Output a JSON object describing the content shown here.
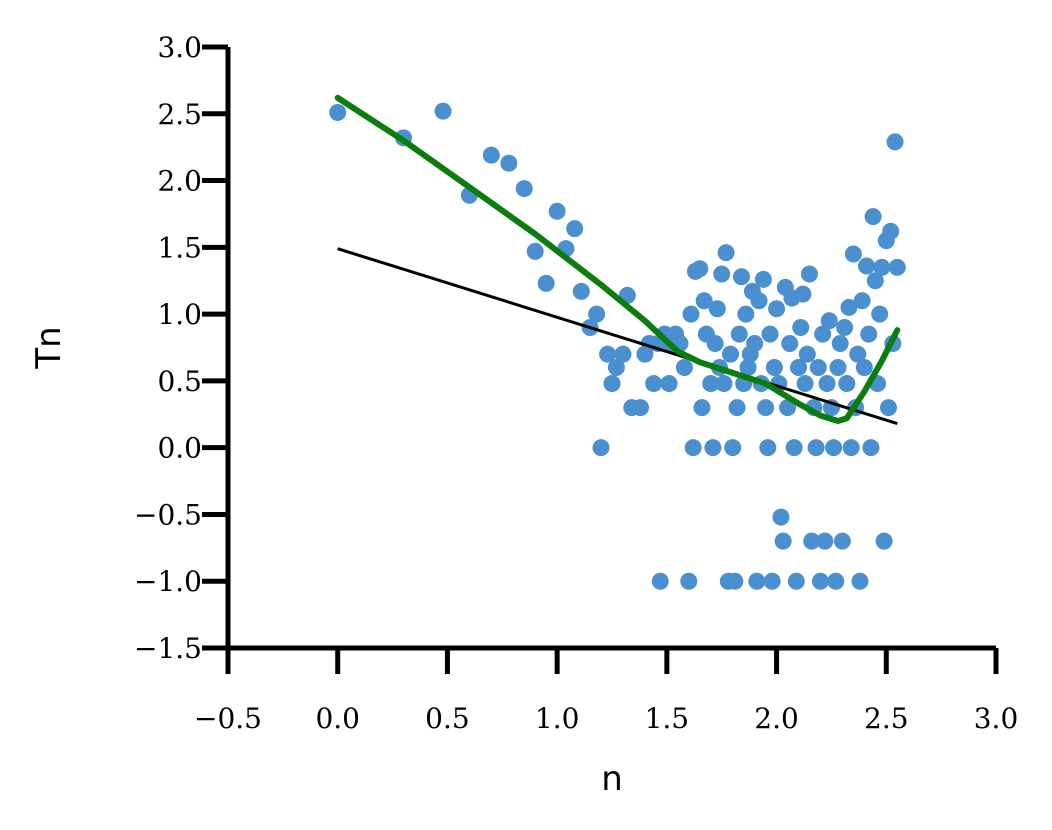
{
  "chart_data": {
    "type": "scatter",
    "title": "",
    "xlabel": "n",
    "ylabel": "Tn",
    "xlim": [
      -0.5,
      3.0
    ],
    "ylim": [
      -1.5,
      3.0
    ],
    "xticks": [
      -0.5,
      0.0,
      0.5,
      1.0,
      1.5,
      2.0,
      2.5,
      3.0
    ],
    "yticks": [
      -1.5,
      -1.0,
      -0.5,
      0.0,
      0.5,
      1.0,
      1.5,
      2.0,
      2.5,
      3.0
    ],
    "xtick_labels": [
      "−0.5",
      "0.0",
      "0.5",
      "1.0",
      "1.5",
      "2.0",
      "2.5",
      "3.0"
    ],
    "ytick_labels": [
      "−1.5",
      "−1.0",
      "−0.5",
      "0.0",
      "0.5",
      "1.0",
      "1.5",
      "2.0",
      "2.5",
      "3.0"
    ],
    "grid": false,
    "colors": {
      "points": "#4a8fd0",
      "linear_fit": "#000000",
      "smooth_fit": "#0a7d0a"
    },
    "scatter_points": [
      [
        0.0,
        2.51
      ],
      [
        0.3,
        2.32
      ],
      [
        0.48,
        2.52
      ],
      [
        0.6,
        1.89
      ],
      [
        0.7,
        2.19
      ],
      [
        0.78,
        2.13
      ],
      [
        0.85,
        1.94
      ],
      [
        0.9,
        1.47
      ],
      [
        0.95,
        1.23
      ],
      [
        1.0,
        1.77
      ],
      [
        1.04,
        1.49
      ],
      [
        1.08,
        1.64
      ],
      [
        1.11,
        1.17
      ],
      [
        1.15,
        0.9
      ],
      [
        1.18,
        1.0
      ],
      [
        1.2,
        0.0
      ],
      [
        1.23,
        0.7
      ],
      [
        1.25,
        0.48
      ],
      [
        1.27,
        0.6
      ],
      [
        1.3,
        0.7
      ],
      [
        1.32,
        1.14
      ],
      [
        1.34,
        0.3
      ],
      [
        1.38,
        0.3
      ],
      [
        1.4,
        0.7
      ],
      [
        1.42,
        0.78
      ],
      [
        1.44,
        0.48
      ],
      [
        1.46,
        0.78
      ],
      [
        1.47,
        -1.0
      ],
      [
        1.49,
        0.85
      ],
      [
        1.51,
        0.48
      ],
      [
        1.52,
        0.78
      ],
      [
        1.54,
        0.85
      ],
      [
        1.56,
        0.78
      ],
      [
        1.58,
        0.6
      ],
      [
        1.6,
        -1.0
      ],
      [
        1.61,
        1.0
      ],
      [
        1.62,
        0.0
      ],
      [
        1.63,
        1.32
      ],
      [
        1.65,
        1.34
      ],
      [
        1.66,
        0.3
      ],
      [
        1.67,
        1.1
      ],
      [
        1.68,
        0.85
      ],
      [
        1.7,
        0.48
      ],
      [
        1.71,
        0.0
      ],
      [
        1.72,
        0.78
      ],
      [
        1.73,
        1.04
      ],
      [
        1.74,
        0.6
      ],
      [
        1.75,
        1.3
      ],
      [
        1.76,
        0.48
      ],
      [
        1.77,
        1.46
      ],
      [
        1.78,
        -1.0
      ],
      [
        1.79,
        0.7
      ],
      [
        1.8,
        0.0
      ],
      [
        1.81,
        -1.0
      ],
      [
        1.82,
        0.3
      ],
      [
        1.83,
        0.85
      ],
      [
        1.84,
        1.28
      ],
      [
        1.85,
        0.48
      ],
      [
        1.86,
        1.0
      ],
      [
        1.87,
        0.6
      ],
      [
        1.88,
        0.7
      ],
      [
        1.89,
        1.17
      ],
      [
        1.9,
        0.78
      ],
      [
        1.91,
        -1.0
      ],
      [
        1.92,
        1.1
      ],
      [
        1.93,
        0.48
      ],
      [
        1.94,
        1.26
      ],
      [
        1.95,
        0.3
      ],
      [
        1.96,
        0.0
      ],
      [
        1.97,
        0.85
      ],
      [
        1.98,
        -1.0
      ],
      [
        1.99,
        0.6
      ],
      [
        2.0,
        1.04
      ],
      [
        2.01,
        0.48
      ],
      [
        2.02,
        -0.52
      ],
      [
        2.03,
        -0.7
      ],
      [
        2.04,
        1.2
      ],
      [
        2.05,
        0.3
      ],
      [
        2.06,
        0.78
      ],
      [
        2.07,
        1.12
      ],
      [
        2.08,
        0.0
      ],
      [
        2.09,
        -1.0
      ],
      [
        2.1,
        0.6
      ],
      [
        2.11,
        0.9
      ],
      [
        2.12,
        1.15
      ],
      [
        2.13,
        0.48
      ],
      [
        2.14,
        0.7
      ],
      [
        2.15,
        1.3
      ],
      [
        2.16,
        -0.7
      ],
      [
        2.17,
        0.3
      ],
      [
        2.18,
        0.0
      ],
      [
        2.19,
        0.6
      ],
      [
        2.2,
        -1.0
      ],
      [
        2.21,
        0.85
      ],
      [
        2.22,
        -0.7
      ],
      [
        2.23,
        0.48
      ],
      [
        2.24,
        0.95
      ],
      [
        2.25,
        0.3
      ],
      [
        2.26,
        0.0
      ],
      [
        2.27,
        -1.0
      ],
      [
        2.28,
        0.6
      ],
      [
        2.29,
        0.78
      ],
      [
        2.3,
        -0.7
      ],
      [
        2.31,
        0.9
      ],
      [
        2.32,
        0.48
      ],
      [
        2.33,
        1.05
      ],
      [
        2.34,
        0.0
      ],
      [
        2.35,
        1.45
      ],
      [
        2.36,
        0.3
      ],
      [
        2.37,
        0.7
      ],
      [
        2.38,
        -1.0
      ],
      [
        2.39,
        1.1
      ],
      [
        2.4,
        0.6
      ],
      [
        2.41,
        1.36
      ],
      [
        2.42,
        0.85
      ],
      [
        2.43,
        0.0
      ],
      [
        2.44,
        1.73
      ],
      [
        2.45,
        1.25
      ],
      [
        2.46,
        0.48
      ],
      [
        2.47,
        1.0
      ],
      [
        2.48,
        1.35
      ],
      [
        2.49,
        -0.7
      ],
      [
        2.5,
        1.55
      ],
      [
        2.51,
        0.3
      ],
      [
        2.52,
        1.62
      ],
      [
        2.53,
        0.78
      ],
      [
        2.54,
        2.29
      ],
      [
        2.55,
        1.35
      ]
    ],
    "series": [
      {
        "type": "line",
        "points": [
          [
            0.0,
            1.49
          ],
          [
            2.55,
            0.18
          ]
        ]
      },
      {
        "type": "line",
        "points": [
          [
            0.0,
            2.62
          ],
          [
            0.3,
            2.3
          ],
          [
            0.6,
            1.95
          ],
          [
            0.9,
            1.6
          ],
          [
            1.2,
            1.22
          ],
          [
            1.4,
            0.95
          ],
          [
            1.55,
            0.72
          ],
          [
            1.65,
            0.64
          ],
          [
            1.8,
            0.56
          ],
          [
            1.95,
            0.48
          ],
          [
            2.1,
            0.33
          ],
          [
            2.2,
            0.24
          ],
          [
            2.28,
            0.2
          ],
          [
            2.32,
            0.22
          ],
          [
            2.4,
            0.42
          ],
          [
            2.48,
            0.65
          ],
          [
            2.55,
            0.88
          ]
        ]
      }
    ]
  }
}
